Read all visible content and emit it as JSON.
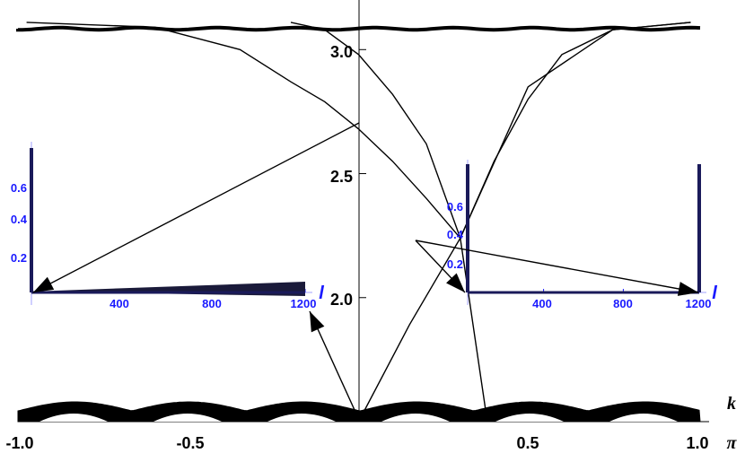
{
  "chart_data": {
    "type": "line",
    "xlabel": {
      "num": "k",
      "den": "π"
    },
    "x_ticks": [
      "-1.0",
      "-0.5",
      "0.5",
      "1.0"
    ],
    "y_ticks": [
      "2.0",
      "2.5",
      "3.0"
    ],
    "xlim": [
      -1.0,
      1.0
    ],
    "ylim": [
      1.5,
      3.2
    ],
    "series": [
      {
        "kind": "band",
        "description_points": [
          [
            -1.0,
            3.11
          ],
          [
            1.0,
            3.11
          ]
        ]
      },
      {
        "kind": "curve",
        "x": [
          -0.98,
          -0.6,
          -0.35,
          -0.2,
          -0.1,
          0.0,
          0.1,
          0.2,
          0.3,
          0.5,
          0.75,
          0.98
        ],
        "y": [
          3.11,
          3.09,
          3.0,
          2.87,
          2.79,
          2.68,
          2.55,
          2.4,
          2.24,
          2.85,
          3.08,
          3.11
        ]
      },
      {
        "kind": "curve",
        "x": [
          -0.2,
          -0.1,
          0.0,
          0.1,
          0.2,
          0.3,
          0.4,
          0.5,
          0.6,
          0.75,
          0.98
        ],
        "y": [
          3.11,
          3.08,
          2.98,
          2.82,
          2.62,
          2.24,
          2.55,
          2.8,
          2.98,
          3.08,
          3.11
        ]
      },
      {
        "kind": "curve",
        "x": [
          0.0,
          0.15,
          0.3,
          0.38
        ],
        "y": [
          1.5,
          1.89,
          2.24,
          1.5
        ]
      }
    ],
    "insets": [
      {
        "x_ticks": [
          "400",
          "800",
          "1200"
        ],
        "y_ticks": [
          "0.2",
          "0.4",
          "0.6"
        ],
        "xlabel": "l"
      },
      {
        "x_ticks": [
          "400",
          "800",
          "1200"
        ],
        "y_ticks": [
          "0.2",
          "0.4",
          "0.6"
        ],
        "xlabel": "l"
      }
    ]
  }
}
